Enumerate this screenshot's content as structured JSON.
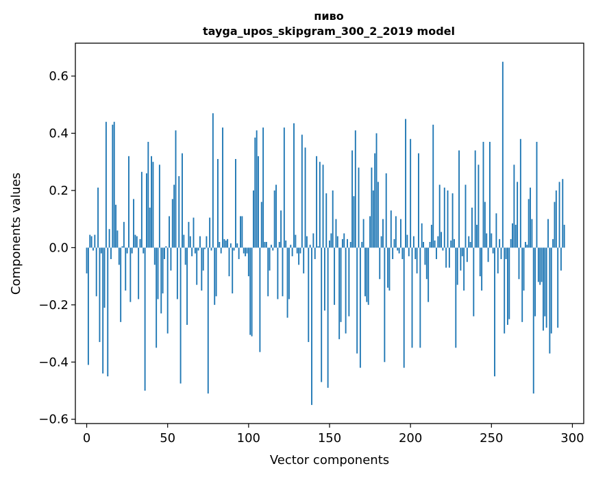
{
  "chart_data": {
    "type": "bar",
    "title_line1": "пиво",
    "title_line2": "tayga_upos_skipgram_300_2_2019 model",
    "xlabel": "Vector components",
    "ylabel": "Components values",
    "xlim": [
      -7,
      307
    ],
    "ylim": [
      -0.615,
      0.715
    ],
    "xticks": [
      0,
      50,
      100,
      150,
      200,
      250,
      300
    ],
    "xtick_labels": [
      "0",
      "50",
      "100",
      "150",
      "200",
      "250",
      "300"
    ],
    "yticks": [
      -0.6,
      -0.4,
      -0.2,
      0.0,
      0.2,
      0.4,
      0.6
    ],
    "ytick_labels": [
      "−0.6",
      "−0.4",
      "−0.2",
      "0.0",
      "0.2",
      "0.4",
      "0.6"
    ],
    "bar_color": "#1f77b4",
    "values": [
      -0.09,
      -0.41,
      0.045,
      0.04,
      -0.01,
      0.045,
      -0.17,
      0.21,
      -0.33,
      -0.02,
      -0.44,
      -0.21,
      0.44,
      -0.45,
      0.065,
      -0.04,
      0.43,
      0.44,
      0.15,
      0.06,
      -0.06,
      -0.26,
      0.005,
      0.09,
      -0.15,
      -0.02,
      0.32,
      -0.19,
      -0.02,
      0.17,
      0.045,
      0.04,
      -0.18,
      0.03,
      0.265,
      -0.02,
      -0.5,
      0.26,
      0.37,
      0.14,
      0.32,
      0.3,
      -0.06,
      -0.35,
      -0.18,
      0.29,
      -0.23,
      -0.16,
      -0.04,
      0.005,
      -0.3,
      0.11,
      -0.08,
      0.17,
      0.22,
      0.41,
      -0.18,
      0.25,
      -0.475,
      0.33,
      0.045,
      -0.06,
      -0.27,
      0.09,
      0.04,
      -0.03,
      0.105,
      -0.02,
      -0.13,
      -0.01,
      0.04,
      -0.15,
      -0.08,
      -0.005,
      0.04,
      -0.51,
      0.105,
      -0.01,
      0.47,
      -0.2,
      -0.17,
      0.31,
      0.02,
      -0.02,
      0.42,
      0.03,
      0.025,
      0.03,
      -0.1,
      0.015,
      -0.16,
      -0.01,
      0.31,
      0.015,
      -0.04,
      0.11,
      0.11,
      -0.02,
      -0.03,
      -0.02,
      -0.1,
      -0.305,
      -0.31,
      0.2,
      0.385,
      0.41,
      0.32,
      -0.365,
      0.16,
      0.42,
      0.02,
      0.02,
      -0.17,
      -0.08,
      0.01,
      -0.01,
      0.2,
      0.22,
      -0.18,
      0.02,
      0.13,
      -0.17,
      0.42,
      0.025,
      -0.245,
      -0.18,
      0.01,
      -0.03,
      0.435,
      0.045,
      -0.02,
      -0.06,
      -0.02,
      0.395,
      -0.09,
      0.35,
      0.04,
      -0.33,
      0.01,
      -0.55,
      0.05,
      -0.04,
      0.32,
      0.005,
      0.3,
      -0.47,
      0.29,
      -0.22,
      0.19,
      -0.49,
      0.025,
      0.05,
      0.2,
      -0.2,
      0.1,
      0.04,
      -0.32,
      -0.26,
      0.03,
      0.05,
      -0.3,
      0.03,
      -0.24,
      0.02,
      0.34,
      0.18,
      0.41,
      -0.37,
      0.28,
      -0.42,
      0.02,
      0.1,
      -0.17,
      -0.19,
      -0.2,
      0.11,
      0.28,
      0.2,
      0.33,
      0.4,
      0.23,
      -0.11,
      0.04,
      0.1,
      -0.4,
      0.26,
      -0.14,
      -0.15,
      0.13,
      -0.04,
      0.03,
      0.11,
      -0.01,
      -0.02,
      0.1,
      -0.04,
      -0.42,
      0.45,
      0.045,
      -0.03,
      0.38,
      -0.35,
      0.04,
      -0.04,
      -0.09,
      0.33,
      -0.35,
      0.085,
      0.02,
      -0.06,
      -0.11,
      -0.19,
      0.02,
      0.08,
      0.43,
      0.025,
      -0.04,
      0.04,
      0.22,
      0.055,
      -0.01,
      0.21,
      -0.07,
      0.2,
      -0.07,
      0.025,
      0.19,
      0.03,
      -0.35,
      -0.13,
      0.34,
      -0.08,
      -0.03,
      -0.15,
      0.22,
      -0.05,
      0.04,
      0.02,
      0.14,
      -0.24,
      0.34,
      0.08,
      0.29,
      -0.1,
      -0.15,
      0.37,
      0.16,
      0.05,
      -0.05,
      0.37,
      0.05,
      -0.02,
      -0.45,
      0.12,
      -0.09,
      0.03,
      -0.04,
      0.65,
      -0.3,
      -0.04,
      -0.27,
      -0.25,
      0.03,
      0.085,
      0.29,
      0.08,
      0.23,
      -0.11,
      0.38,
      -0.26,
      -0.15,
      0.02,
      0.01,
      0.17,
      0.21,
      0.1,
      -0.51,
      -0.24,
      0.37,
      -0.12,
      -0.13,
      -0.12,
      -0.29,
      -0.24,
      -0.28,
      0.1,
      -0.37,
      -0.3,
      0.03,
      0.16,
      0.2,
      -0.28,
      0.23,
      -0.08,
      0.24,
      0.08
    ]
  }
}
